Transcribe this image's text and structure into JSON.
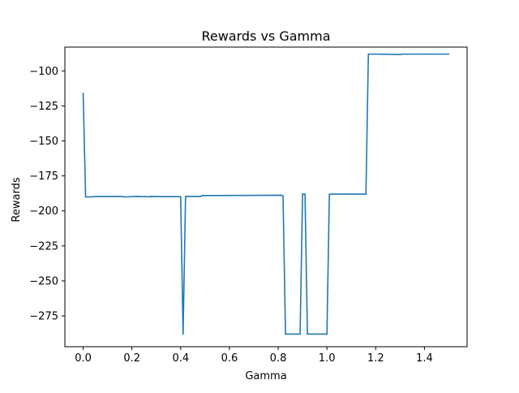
{
  "chart_data": {
    "type": "line",
    "title": "Rewards vs Gamma",
    "xlabel": "Gamma",
    "ylabel": "Rewards",
    "xlim": [
      -0.075,
      1.575
    ],
    "ylim": [
      -297,
      -83
    ],
    "xticks": [
      0.0,
      0.2,
      0.4,
      0.6,
      0.8,
      1.0,
      1.2,
      1.4
    ],
    "xtick_labels": [
      "0.0",
      "0.2",
      "0.4",
      "0.6",
      "0.8",
      "1.0",
      "1.2",
      "1.4"
    ],
    "yticks": [
      -100,
      -125,
      -150,
      -175,
      -200,
      -225,
      -250,
      -275
    ],
    "ytick_labels": [
      "−100",
      "−125",
      "−150",
      "−175",
      "−200",
      "−225",
      "−250",
      "−275"
    ],
    "grid": false,
    "line_color": "#1f77b4",
    "series": [
      {
        "x": [
          0.0,
          0.01,
          0.03,
          0.06,
          0.1,
          0.16,
          0.17,
          0.22,
          0.27,
          0.28,
          0.33,
          0.4,
          0.41,
          0.42,
          0.48,
          0.49,
          0.55,
          0.81,
          0.82,
          0.83,
          0.89,
          0.9,
          0.91,
          0.92,
          1.0,
          1.01,
          1.05,
          1.1,
          1.16,
          1.17,
          1.2,
          1.3,
          1.31,
          1.4,
          1.5
        ],
        "y": [
          -116,
          -190,
          -190,
          -189.7,
          -189.7,
          -189.7,
          -190,
          -189.7,
          -189.9,
          -189.7,
          -189.8,
          -189.8,
          -288,
          -189.7,
          -189.7,
          -189,
          -189,
          -188.8,
          -189.3,
          -288,
          -288,
          -188,
          -188,
          -288,
          -288,
          -188,
          -188,
          -188,
          -188,
          -88,
          -88,
          -88.3,
          -88,
          -88,
          -88
        ]
      }
    ]
  }
}
